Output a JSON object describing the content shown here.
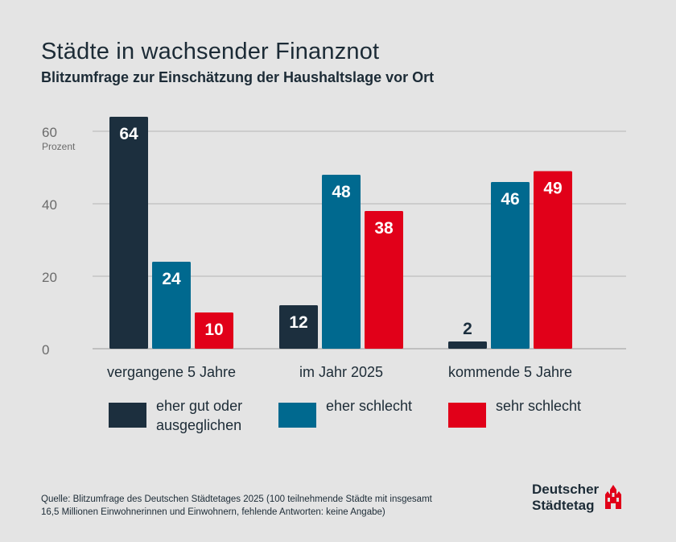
{
  "header": {
    "title": "Städte in wachsender Finanznot",
    "subtitle": "Blitzumfrage zur Einschätzung der Haushaltslage vor Ort"
  },
  "chart_data": {
    "type": "bar",
    "title": "Städte in wachsender Finanznot",
    "subtitle": "Blitzumfrage zur Einschätzung der Haushaltslage vor Ort",
    "ylabel": "Prozent",
    "xlabel": "",
    "ylim": [
      0,
      60
    ],
    "yticks": [
      0,
      20,
      40,
      60
    ],
    "grid": true,
    "legend_position": "bottom",
    "categories": [
      "vergangene 5 Jahre",
      "im Jahr 2025",
      "kommende 5 Jahre"
    ],
    "series": [
      {
        "name": "eher gut oder ausgeglichen",
        "values": [
          64,
          12,
          2
        ],
        "color": "#1c2f3e"
      },
      {
        "name": "eher schlecht",
        "values": [
          24,
          48,
          46
        ],
        "color": "#00698f"
      },
      {
        "name": "sehr schlecht",
        "values": [
          10,
          38,
          49
        ],
        "color": "#e10019"
      }
    ]
  },
  "legend": {
    "items": [
      {
        "label": "eher gut oder\nausgeglichen",
        "color": "#1c2f3e",
        "icon": "square-swatch"
      },
      {
        "label": "eher schlecht",
        "color": "#00698f",
        "icon": "square-swatch"
      },
      {
        "label": "sehr schlecht",
        "color": "#e10019",
        "icon": "square-swatch"
      }
    ]
  },
  "footer": {
    "source_line1": "Quelle: Blitzumfrage des Deutschen Städtetages 2025 (100 teilnehmende Städte mit insgesamt",
    "source_line2": "16,5 Millionen Einwohnerinnen und Einwohnern, fehlende Antworten: keine Angabe)",
    "logo_line1": "Deutscher",
    "logo_line2": "Städtetag",
    "logo_icon": "city-crown-icon",
    "logo_color": "#e10019"
  }
}
